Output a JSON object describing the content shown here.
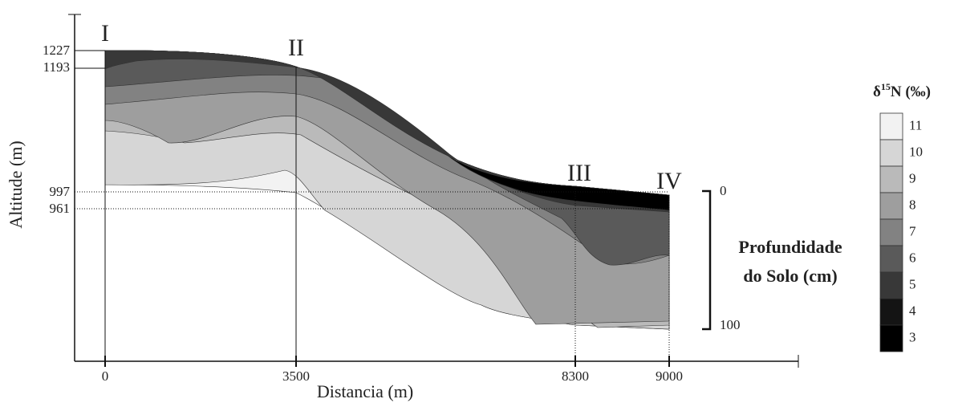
{
  "axes": {
    "y_label": "Altitude (m)",
    "x_label": "Distancia (m)",
    "y_ticks": [
      "1227",
      "1193",
      "997",
      "961"
    ],
    "x_ticks": [
      "0",
      "3500",
      "8300",
      "9000"
    ]
  },
  "sections": [
    "I",
    "II",
    "III",
    "IV"
  ],
  "depth_scale": {
    "top": "0",
    "bottom": "100",
    "label_line1": "Profundidade",
    "label_line2": "do Solo (cm)"
  },
  "legend": {
    "title_symbol": "δ",
    "title_sup": "15",
    "title_rest": "N (‰)",
    "items": [
      {
        "label": "11",
        "color": "#f2f2f2"
      },
      {
        "label": "10",
        "color": "#d6d6d6"
      },
      {
        "label": "9",
        "color": "#bababa"
      },
      {
        "label": "8",
        "color": "#9e9e9e"
      },
      {
        "label": "7",
        "color": "#828282"
      },
      {
        "label": "6",
        "color": "#5a5a5a"
      },
      {
        "label": "5",
        "color": "#383838"
      },
      {
        "label": "4",
        "color": "#141414"
      },
      {
        "label": "3",
        "color": "#000000"
      }
    ]
  }
}
